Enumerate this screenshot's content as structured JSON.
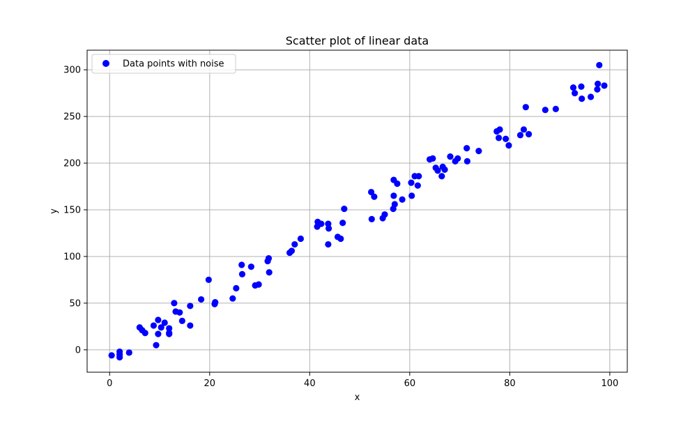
{
  "chart_data": {
    "type": "scatter",
    "title": "Scatter plot of linear data",
    "xlabel": "x",
    "ylabel": "y",
    "xlim": [
      -4.5,
      103.5
    ],
    "ylim": [
      -24,
      321
    ],
    "xticks": [
      0,
      20,
      40,
      60,
      80,
      100
    ],
    "yticks": [
      0,
      50,
      100,
      150,
      200,
      250,
      300
    ],
    "grid": true,
    "legend_position": "top-left",
    "series": [
      {
        "name": "Data points with noise",
        "color": "#0000ff",
        "marker": "circle",
        "points": [
          [
            0.4,
            -6
          ],
          [
            2.0,
            -2
          ],
          [
            2.0,
            -5
          ],
          [
            2.0,
            -8
          ],
          [
            3.9,
            -3
          ],
          [
            6.0,
            24
          ],
          [
            6.5,
            21
          ],
          [
            7.1,
            18
          ],
          [
            8.8,
            26
          ],
          [
            9.3,
            5
          ],
          [
            9.7,
            32
          ],
          [
            9.7,
            17
          ],
          [
            10.3,
            24
          ],
          [
            11.0,
            29
          ],
          [
            11.9,
            23
          ],
          [
            11.9,
            18
          ],
          [
            11.9,
            17
          ],
          [
            12.9,
            50
          ],
          [
            13.2,
            41
          ],
          [
            14.0,
            40
          ],
          [
            14.5,
            31
          ],
          [
            16.1,
            47
          ],
          [
            16.1,
            26
          ],
          [
            18.3,
            54
          ],
          [
            19.8,
            75
          ],
          [
            21.0,
            49
          ],
          [
            21.1,
            51
          ],
          [
            24.6,
            55
          ],
          [
            25.3,
            66
          ],
          [
            26.4,
            91
          ],
          [
            26.5,
            81
          ],
          [
            28.3,
            89
          ],
          [
            29.1,
            69
          ],
          [
            29.8,
            70
          ],
          [
            31.6,
            95
          ],
          [
            31.8,
            98
          ],
          [
            31.9,
            83
          ],
          [
            36.0,
            104
          ],
          [
            36.4,
            106
          ],
          [
            37.0,
            113
          ],
          [
            38.2,
            119
          ],
          [
            41.5,
            132
          ],
          [
            41.6,
            137
          ],
          [
            42.3,
            135
          ],
          [
            43.7,
            135
          ],
          [
            43.8,
            130
          ],
          [
            43.7,
            113
          ],
          [
            45.6,
            121
          ],
          [
            46.2,
            119
          ],
          [
            46.6,
            136
          ],
          [
            46.9,
            151
          ],
          [
            52.3,
            169
          ],
          [
            52.4,
            140
          ],
          [
            52.9,
            164
          ],
          [
            54.6,
            141
          ],
          [
            55.0,
            145
          ],
          [
            56.7,
            151
          ],
          [
            56.8,
            165
          ],
          [
            56.8,
            182
          ],
          [
            57.0,
            156
          ],
          [
            57.5,
            178
          ],
          [
            58.5,
            161
          ],
          [
            60.3,
            179
          ],
          [
            60.4,
            165
          ],
          [
            61.0,
            186
          ],
          [
            61.6,
            176
          ],
          [
            61.8,
            186
          ],
          [
            64.0,
            204
          ],
          [
            64.6,
            205
          ],
          [
            65.2,
            195
          ],
          [
            65.6,
            192
          ],
          [
            66.4,
            186
          ],
          [
            66.6,
            196
          ],
          [
            67.0,
            193
          ],
          [
            68.1,
            207
          ],
          [
            69.1,
            202
          ],
          [
            69.6,
            205
          ],
          [
            71.4,
            216
          ],
          [
            71.5,
            202
          ],
          [
            73.8,
            213
          ],
          [
            77.4,
            234
          ],
          [
            77.8,
            227
          ],
          [
            78.0,
            236
          ],
          [
            79.2,
            226
          ],
          [
            79.8,
            219
          ],
          [
            82.1,
            230
          ],
          [
            82.8,
            236
          ],
          [
            83.2,
            260
          ],
          [
            83.8,
            231
          ],
          [
            87.1,
            257
          ],
          [
            89.2,
            258
          ],
          [
            92.7,
            281
          ],
          [
            93.0,
            275
          ],
          [
            94.3,
            282
          ],
          [
            94.4,
            269
          ],
          [
            96.2,
            271
          ],
          [
            97.5,
            279
          ],
          [
            97.6,
            285
          ],
          [
            97.9,
            305
          ],
          [
            98.9,
            283
          ]
        ]
      }
    ]
  }
}
